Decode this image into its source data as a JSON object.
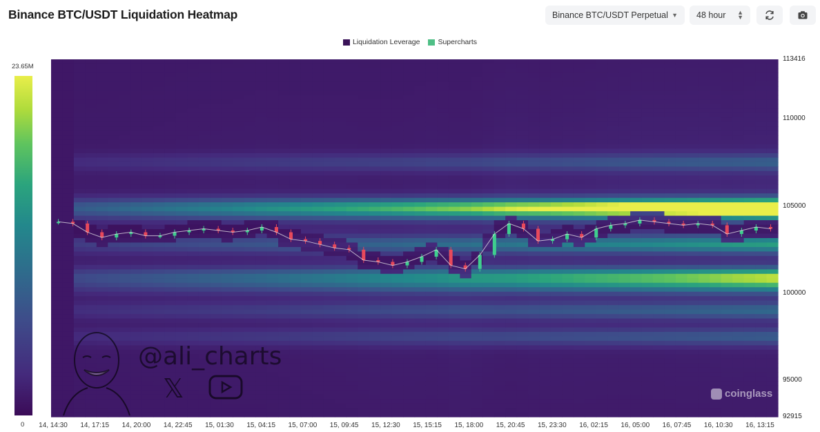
{
  "header": {
    "title": "Binance BTC/USDT Liquidation Heatmap",
    "pair_select": "Binance BTC/USDT Perpetual",
    "range_select": "48 hour",
    "refresh_icon": "refresh-icon",
    "camera_icon": "camera-icon"
  },
  "legend": {
    "items": [
      {
        "label": "Liquidation Leverage",
        "color": "#3a1358"
      },
      {
        "label": "Supercharts",
        "color": "#4fbf86"
      }
    ]
  },
  "colorbar": {
    "max_label": "23.65M",
    "min_label": "0"
  },
  "watermark": {
    "handle": "@ali_charts",
    "brand": "coinglass"
  },
  "chart_data": {
    "type": "heatmap",
    "title": "Binance BTC/USDT Liquidation Heatmap",
    "xlabel": "",
    "ylabel": "",
    "ylim": [
      92915,
      113416
    ],
    "y_ticks": [
      "113416",
      "110000",
      "105000",
      "100000",
      "95000",
      "92915"
    ],
    "x_ticks": [
      "14, 14:30",
      "14, 17:15",
      "14, 20:00",
      "14, 22:45",
      "15, 01:30",
      "15, 04:15",
      "15, 07:00",
      "15, 09:45",
      "15, 12:30",
      "15, 15:15",
      "15, 18:00",
      "15, 20:45",
      "15, 23:30",
      "16, 02:15",
      "16, 05:00",
      "16, 07:45",
      "16, 10:30",
      "16, 13:15"
    ],
    "colorbar_range": [
      0,
      23.65
    ],
    "colorbar_unit": "M",
    "price_series": [
      104100,
      104000,
      103500,
      103200,
      103400,
      103500,
      103300,
      103300,
      103500,
      103600,
      103700,
      103600,
      103500,
      103600,
      103800,
      103500,
      103100,
      103000,
      102800,
      102600,
      102500,
      101900,
      101800,
      101600,
      101800,
      102100,
      102500,
      101600,
      101400,
      102200,
      103400,
      104000,
      103700,
      103000,
      103100,
      103400,
      103200,
      103700,
      103900,
      104000,
      104200,
      104100,
      104000,
      103900,
      104000,
      103900,
      103400,
      103600,
      103800,
      103700
    ],
    "liquidation_bands": [
      {
        "price": 105000,
        "intensity": 0.85
      },
      {
        "price": 104600,
        "intensity": 0.5
      },
      {
        "price": 102800,
        "intensity": 0.55
      },
      {
        "price": 101000,
        "intensity": 0.7
      },
      {
        "price": 100400,
        "intensity": 0.45
      },
      {
        "price": 99000,
        "intensity": 0.35
      },
      {
        "price": 97500,
        "intensity": 0.3
      },
      {
        "price": 107500,
        "intensity": 0.3
      }
    ]
  }
}
